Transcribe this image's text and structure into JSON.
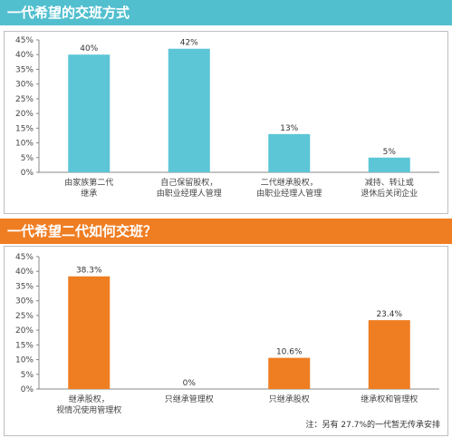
{
  "chart_data": [
    {
      "type": "bar",
      "title": "一代希望的交班方式",
      "categories": [
        [
          "由家族第二代",
          "继承"
        ],
        [
          "自己保留股权，",
          "由职业经理人管理"
        ],
        [
          "二代继承股权，",
          "由职业经理人管理"
        ],
        [
          "减持、转让或",
          "退休后关闭企业"
        ]
      ],
      "values": [
        40,
        42,
        13,
        5
      ],
      "value_labels": [
        "40%",
        "42%",
        "13%",
        "5%"
      ],
      "ylim": [
        0,
        45
      ],
      "yticks": [
        "0%",
        "5%",
        "10%",
        "15%",
        "20%",
        "25%",
        "30%",
        "35%",
        "40%",
        "45%"
      ],
      "grid": false,
      "colors": {
        "banner": "#52bfcf",
        "bar": "#5cc6d6"
      }
    },
    {
      "type": "bar",
      "title": "一代希望二代如何交班？",
      "categories": [
        [
          "继承股权，",
          "视情况使用管理权"
        ],
        [
          "只继承管理权"
        ],
        [
          "只继承股权"
        ],
        [
          "继承权和管理权"
        ]
      ],
      "values": [
        38.3,
        0,
        10.6,
        23.4
      ],
      "value_labels": [
        "38.3%",
        "0%",
        "10.6%",
        "23.4%"
      ],
      "ylim": [
        0,
        45
      ],
      "yticks": [
        "0%",
        "5%",
        "10%",
        "15%",
        "20%",
        "25%",
        "30%",
        "35%",
        "40%",
        "45%"
      ],
      "grid": false,
      "note": "注：另有 27.7%的一代暂无传承安排",
      "colors": {
        "banner": "#ef7d22",
        "bar": "#ef7d22"
      }
    }
  ]
}
